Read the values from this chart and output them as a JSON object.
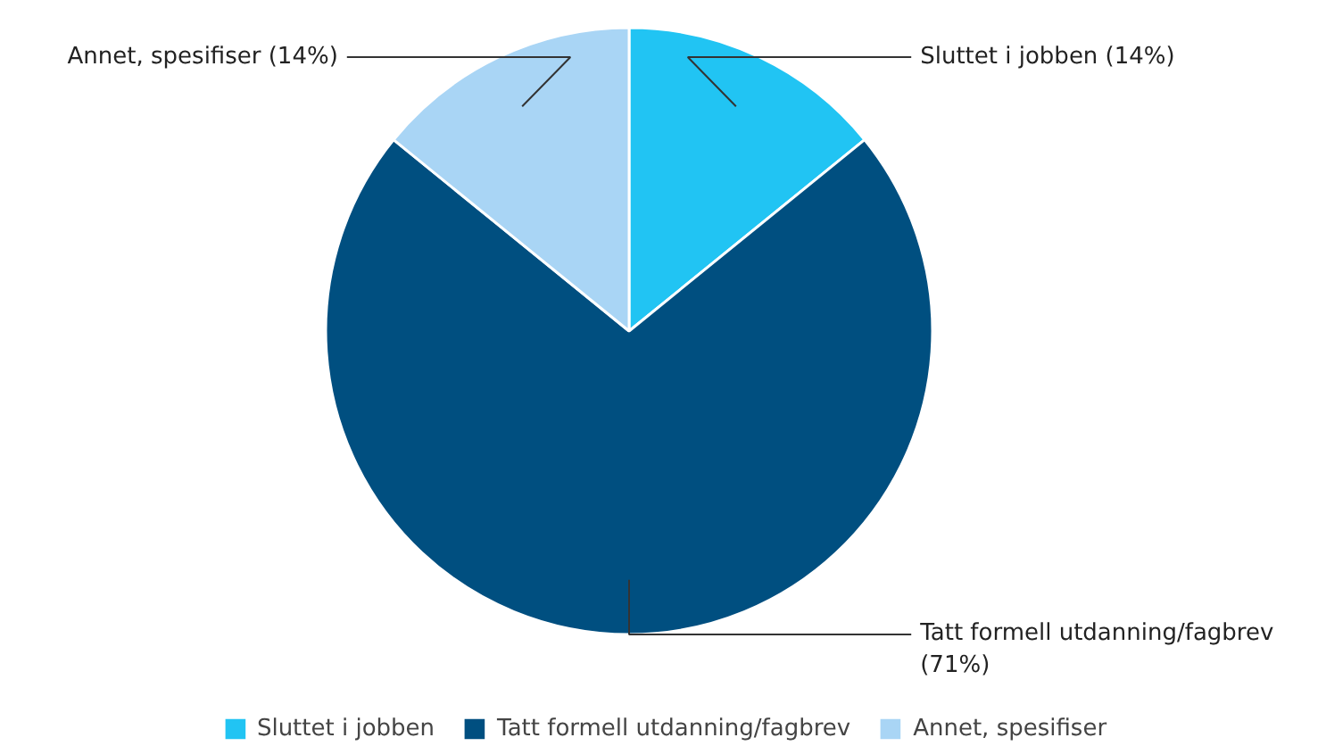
{
  "chart_data": {
    "type": "pie",
    "categories": [
      "Sluttet i jobben",
      "Tatt formell utdanning/fagbrev",
      "Annet, spesifiser"
    ],
    "values": [
      14,
      71,
      14
    ],
    "value_labels": [
      "(14%)",
      "(71%)",
      "(14%)"
    ],
    "colors": [
      "#21c4f3",
      "#004f80",
      "#a9d5f5"
    ],
    "legend": "bottom"
  }
}
